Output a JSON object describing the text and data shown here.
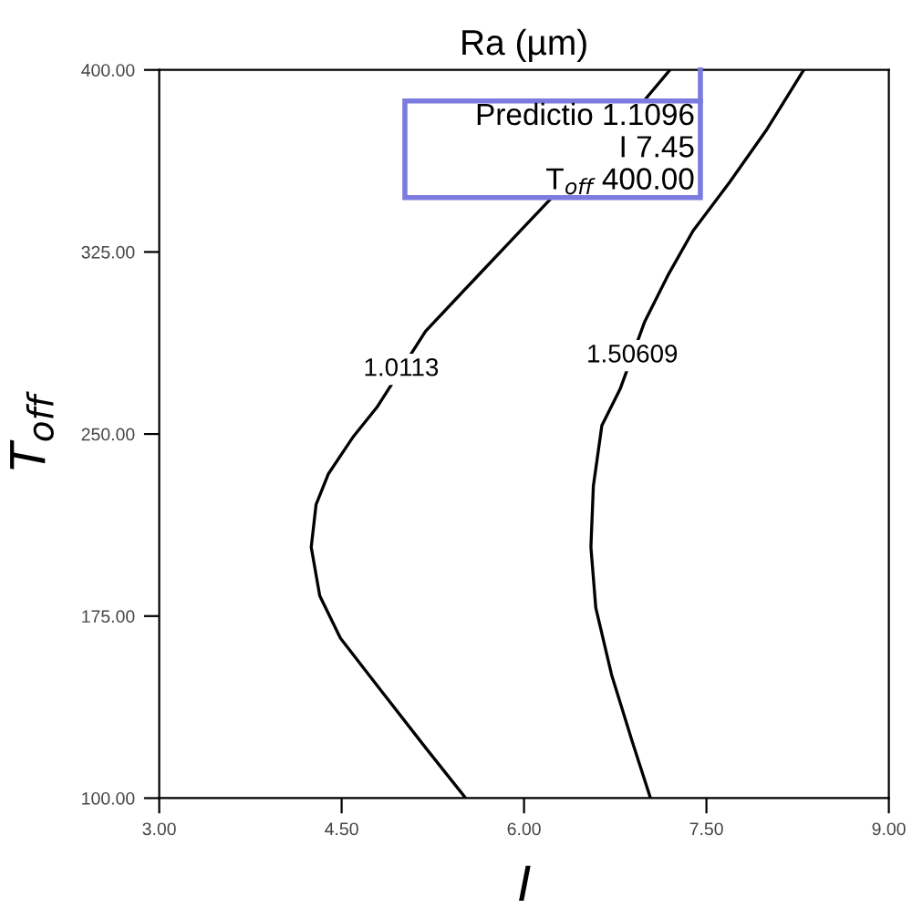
{
  "chart_data": {
    "type": "line",
    "title": "Ra (µm)",
    "xlabel": "I",
    "ylabel": "T$_{off}$",
    "series": [
      {
        "name": "1.0113",
        "color": "#000000",
        "x": [
          5.52,
          5.19,
          4.84,
          4.49,
          4.32,
          4.25,
          4.29,
          4.39,
          4.59,
          4.79,
          5.19,
          5.59,
          5.97,
          6.99,
          7.2
        ],
        "values": [
          100,
          120.8,
          143.3,
          165.9,
          183.4,
          203.4,
          221,
          233.5,
          248.5,
          261,
          292.3,
          313.6,
          333.7,
          387.5,
          400
        ]
      },
      {
        "name": "1.50609",
        "color": "#000000",
        "x": [
          7.04,
          6.89,
          6.72,
          6.59,
          6.55,
          6.57,
          6.64,
          6.79,
          6.99,
          7.19,
          7.39,
          7.69,
          7.99,
          8.3
        ],
        "values": [
          100,
          123.3,
          150.8,
          178.4,
          203.4,
          228.5,
          253.5,
          268.5,
          296,
          316,
          333.7,
          353.7,
          375,
          400
        ]
      }
    ],
    "annotations": [
      "Predictio 1.1096",
      "I 7.45",
      "T$_{off}$ 400.00"
    ],
    "xlim": [
      3,
      9
    ],
    "ylim": [
      100,
      400
    ],
    "xticks": [
      {
        "value": 3,
        "label": "3.00"
      },
      {
        "value": 4.5,
        "label": "4.50"
      },
      {
        "value": 6,
        "label": "6.00"
      },
      {
        "value": 7.5,
        "label": "7.50"
      },
      {
        "value": 9,
        "label": "9.00"
      }
    ],
    "yticks": [
      {
        "value": 100,
        "label": "100.00"
      },
      {
        "value": 175,
        "label": "175.00"
      },
      {
        "value": 250,
        "label": "250.00"
      },
      {
        "value": 325,
        "label": "325.00"
      },
      {
        "value": 400,
        "label": "400.00"
      }
    ],
    "grid": false,
    "legend": false,
    "marker": "none",
    "line_style": "solid"
  }
}
